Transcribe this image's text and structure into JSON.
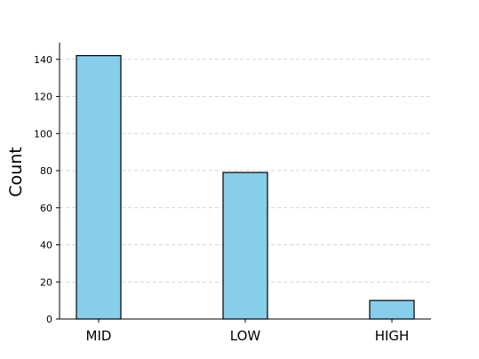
{
  "chart_data": {
    "type": "bar",
    "categories": [
      "MID",
      "LOW",
      "HIGH"
    ],
    "values": [
      142,
      79,
      10
    ],
    "title": "",
    "xlabel": "",
    "ylabel": "Count",
    "ylim": [
      0,
      149
    ],
    "yticks": [
      0,
      20,
      40,
      60,
      80,
      100,
      120,
      140
    ],
    "grid": "y-dashed",
    "legend": "none",
    "colors": {
      "bar_fill": "#87ceeb",
      "bar_edge": "#000000",
      "grid": "#c8c8c8"
    }
  }
}
